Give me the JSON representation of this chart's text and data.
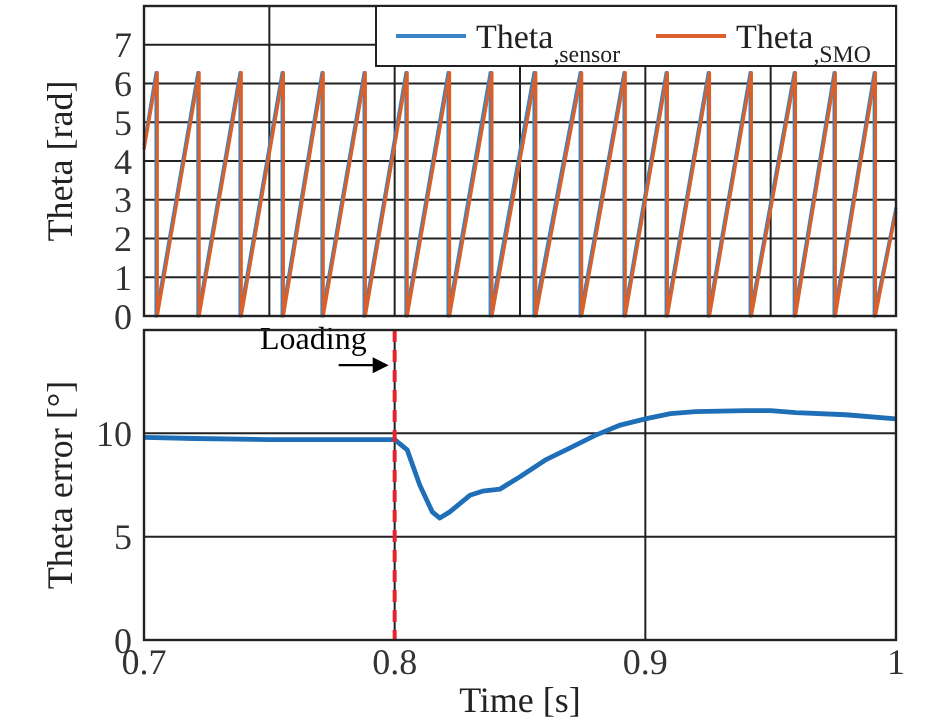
{
  "chart_data": [
    {
      "type": "line",
      "ylabel": "Theta [rad]",
      "xlim": [
        0.7,
        1
      ],
      "ylim": [
        0,
        8
      ],
      "xticks": [
        {
          "value": 0.7,
          "label": null
        },
        {
          "value": 0.75,
          "label": null
        },
        {
          "value": 0.8,
          "label": null
        },
        {
          "value": 0.85,
          "label": null
        },
        {
          "value": 0.9,
          "label": null
        },
        {
          "value": 0.95,
          "label": null
        },
        {
          "value": 1,
          "label": null
        }
      ],
      "yticks": [
        0,
        1,
        2,
        3,
        4,
        5,
        6,
        7
      ],
      "grid": true,
      "legend": "top right",
      "tick_labels": "y",
      "series": [
        {
          "name": "Theta$_{,sensor}$",
          "color": "#3a85c3",
          "x": [
            0.7,
            0.7048,
            0.7048,
            0.7215,
            0.7215,
            0.7383,
            0.7383,
            0.7551,
            0.7551,
            0.771,
            0.771,
            0.7878,
            0.7878,
            0.8045,
            0.8045,
            0.8213,
            0.8213,
            0.8381,
            0.8381,
            0.8556,
            0.8556,
            0.874,
            0.874,
            0.8915,
            0.8915,
            0.9083,
            0.9083,
            0.9251,
            0.9251,
            0.9418,
            0.9418,
            0.9594,
            0.9594,
            0.9753,
            0.9753,
            0.9913,
            0.9913,
            1
          ],
          "values": [
            4.4,
            6.28,
            0,
            6.28,
            0,
            6.28,
            0,
            6.28,
            0,
            6.28,
            0,
            6.28,
            0,
            6.28,
            0,
            6.28,
            0,
            6.28,
            0,
            6.28,
            0,
            6.28,
            0,
            6.28,
            0,
            6.28,
            0,
            6.28,
            0,
            6.28,
            0,
            6.28,
            0,
            6.28,
            0,
            6.28,
            0,
            2.8
          ]
        },
        {
          "name": "Theta$_{,SMO}$",
          "color": "#d9602a",
          "x": [
            0.7,
            0.7053,
            0.7053,
            0.722,
            0.722,
            0.7388,
            0.7388,
            0.7556,
            0.7556,
            0.7715,
            0.7715,
            0.7883,
            0.7883,
            0.805,
            0.805,
            0.8219,
            0.8219,
            0.8388,
            0.8388,
            0.8563,
            0.8563,
            0.8746,
            0.8746,
            0.892,
            0.892,
            0.9088,
            0.9088,
            0.9256,
            0.9256,
            0.9423,
            0.9423,
            0.9599,
            0.9599,
            0.9758,
            0.9758,
            0.9918,
            0.9918,
            1
          ],
          "values": [
            4.3,
            6.28,
            0,
            6.28,
            0,
            6.28,
            0,
            6.28,
            0,
            6.28,
            0,
            6.28,
            0,
            6.28,
            0,
            6.28,
            0,
            6.28,
            0,
            6.28,
            0,
            6.28,
            0,
            6.28,
            0,
            6.28,
            0,
            6.28,
            0,
            6.28,
            0,
            6.28,
            0,
            6.28,
            0,
            6.28,
            0,
            2.7
          ]
        }
      ]
    },
    {
      "type": "line",
      "xlabel": "Time [s]",
      "ylabel": "Theta error [°]",
      "xlim": [
        0.7,
        1
      ],
      "ylim": [
        0,
        15
      ],
      "xticks": [
        0.7,
        0.8,
        0.9,
        1
      ],
      "yticks": [
        0,
        5,
        10
      ],
      "grid": true,
      "ref_lines": [
        {
          "axis": "x",
          "value": 0.8,
          "label": null,
          "color": "#e8212a",
          "line_style": "dashed"
        }
      ],
      "annotations": [
        {
          "text": "Loading",
          "x": 0.8,
          "y": 13.3
        }
      ],
      "series": [
        {
          "color": "#1f6fb8",
          "x": [
            0.7,
            0.72,
            0.75,
            0.78,
            0.8,
            0.805,
            0.81,
            0.815,
            0.818,
            0.822,
            0.83,
            0.835,
            0.842,
            0.85,
            0.86,
            0.87,
            0.88,
            0.89,
            0.9,
            0.91,
            0.92,
            0.94,
            0.95,
            0.96,
            0.98,
            1
          ],
          "values": [
            9.8,
            9.75,
            9.7,
            9.7,
            9.7,
            9.2,
            7.5,
            6.2,
            5.9,
            6.2,
            7.0,
            7.2,
            7.3,
            7.9,
            8.7,
            9.3,
            9.9,
            10.4,
            10.7,
            10.95,
            11.05,
            11.1,
            11.1,
            11.0,
            10.9,
            10.7
          ]
        }
      ]
    }
  ]
}
